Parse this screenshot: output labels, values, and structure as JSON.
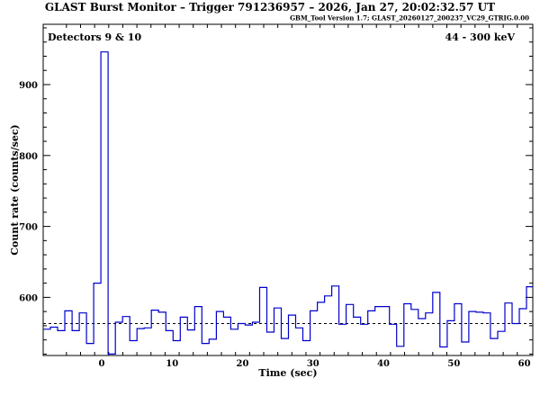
{
  "header": {
    "title": "GLAST Burst Monitor  –  Trigger 791236957  –  2026, Jan 27, 20:02:32.57 UT",
    "version": "GBM_Tool Version 1.7; GLAST_20260127_200237_VC29_GTRIG.0.00"
  },
  "chart_data": {
    "type": "line",
    "step": true,
    "title": "",
    "xlabel": "Time (sec)",
    "ylabel": "Count rate (counts/sec)",
    "annotations": {
      "detectors": "Detectors 9 & 10",
      "energy_range": "44 - 300 keV"
    },
    "xlim": [
      -8.3,
      61.2
    ],
    "ylim": [
      518,
      985
    ],
    "xticks": [
      0,
      10,
      20,
      30,
      40,
      50,
      60
    ],
    "yticks": [
      600,
      700,
      800,
      900
    ],
    "background_level": 563,
    "bin_width": 1.024,
    "series": [
      {
        "bin_start": -8.3,
        "values": [
          555,
          558,
          553,
          581,
          553,
          578,
          535,
          620,
          946,
          520,
          565,
          573,
          539,
          556,
          557,
          582,
          579,
          553,
          539,
          572,
          554,
          587,
          535,
          541,
          580,
          572,
          555,
          563,
          561,
          565,
          614,
          551,
          585,
          542,
          575,
          557,
          539,
          581,
          593,
          602,
          616,
          562,
          590,
          572,
          562,
          581,
          587,
          587,
          562,
          531,
          591,
          583,
          570,
          578,
          607,
          530,
          567,
          591,
          537,
          580,
          579,
          578,
          542,
          552,
          592,
          563,
          584,
          615
        ]
      }
    ]
  }
}
